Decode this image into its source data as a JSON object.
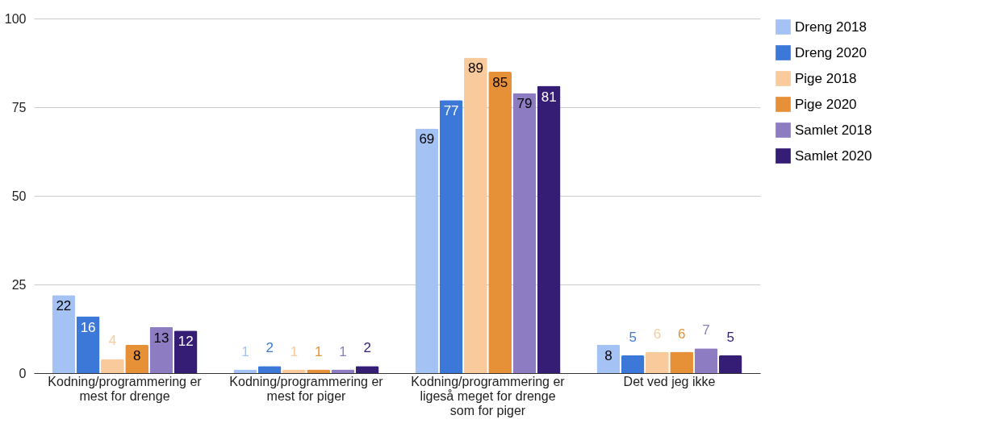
{
  "chart_data": {
    "type": "bar",
    "categories": [
      "Kodning/programmering er mest for drenge",
      "Kodning/programmering er mest for piger",
      "Kodning/programmering er ligeså meget for drenge som for piger",
      "Det ved jeg ikke"
    ],
    "series": [
      {
        "name": "Dreng 2018",
        "color": "#a4c2f4",
        "values": [
          22,
          1,
          69,
          8
        ]
      },
      {
        "name": "Dreng 2020",
        "color": "#3c78d8",
        "values": [
          16,
          2,
          77,
          5
        ]
      },
      {
        "name": "Pige 2018",
        "color": "#f9cb9c",
        "values": [
          4,
          1,
          89,
          6
        ]
      },
      {
        "name": "Pige 2020",
        "color": "#e69138",
        "values": [
          8,
          1,
          85,
          6
        ]
      },
      {
        "name": "Samlet 2018",
        "color": "#8e7cc3",
        "values": [
          13,
          1,
          79,
          7
        ]
      },
      {
        "name": "Samlet 2020",
        "color": "#351c75",
        "values": [
          12,
          2,
          81,
          5
        ]
      }
    ],
    "ylim": [
      0,
      100
    ],
    "yticks": [
      0,
      25,
      50,
      75,
      100
    ],
    "grid": "y",
    "legend": "top right",
    "data_labels": true
  }
}
